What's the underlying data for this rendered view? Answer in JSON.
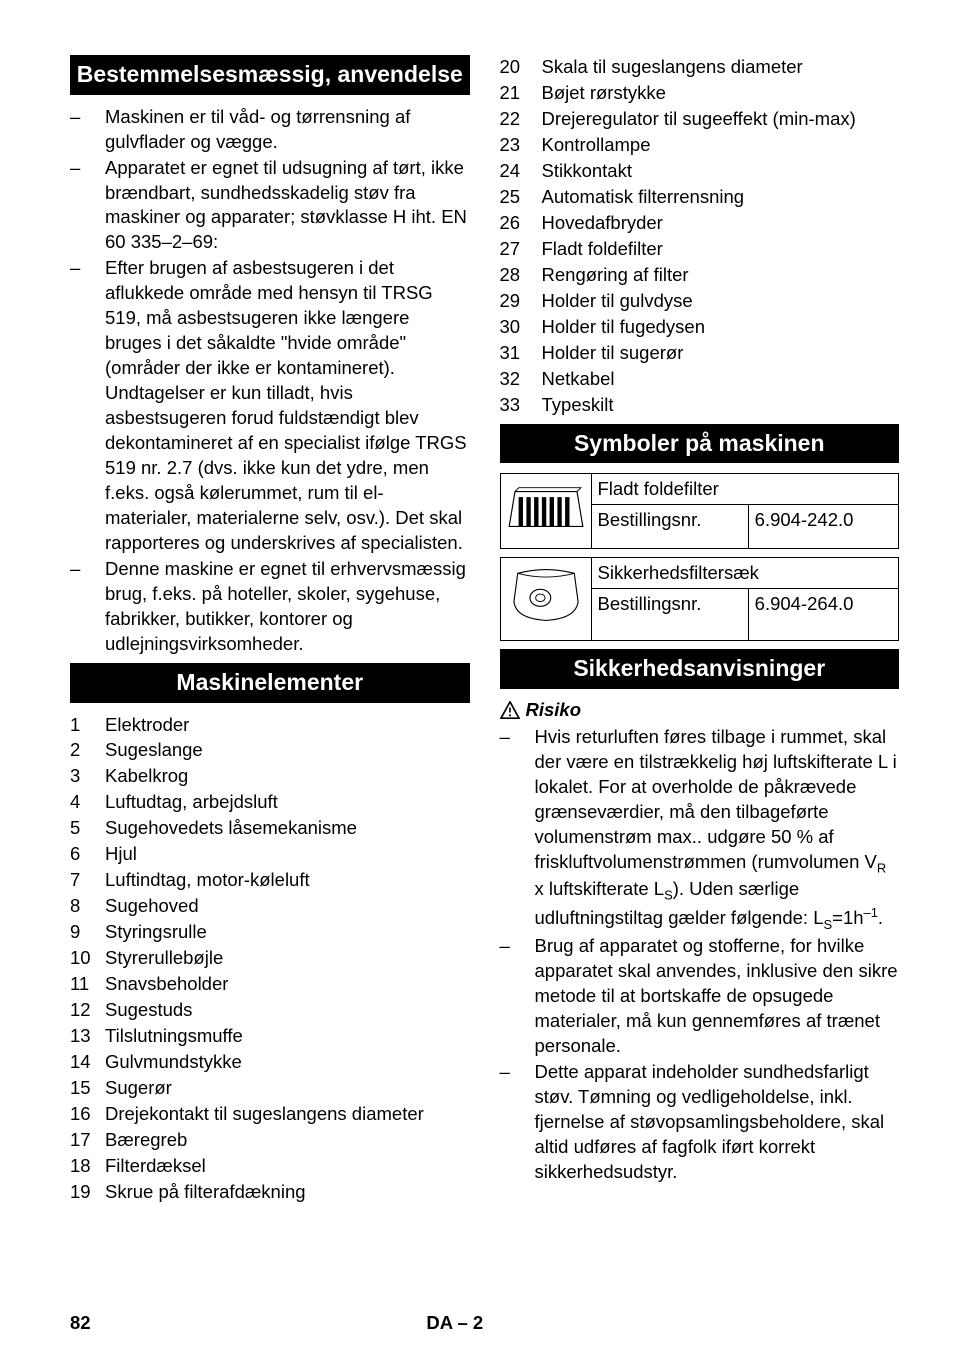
{
  "left": {
    "header1": "Bestemmelsesmæssig, anvendelse",
    "bullets1": [
      "Maskinen er til våd- og tørrensning af gulvflader og vægge.",
      "Apparatet er egnet til udsugning af tørt, ikke brændbart, sundhedsskadelig støv fra maskiner og apparater; støvklasse H iht. EN 60 335–2–69:",
      "Efter brugen af asbestsugeren i det aflukkede område med hensyn til TRSG 519, må asbestsugeren ikke længere bruges i det såkaldte \"hvide område\" (områder der ikke er kontamineret). Undtagelser er kun tilladt, hvis asbestsugeren forud fuldstændigt blev dekontamineret af en specialist ifølge TRGS 519 nr. 2.7 (dvs. ikke kun det ydre, men f.eks. også kølerummet, rum til el-materialer, materialerne selv, osv.). Det skal rapporteres og underskrives af specialisten.",
      "Denne maskine er egnet til erhvervsmæssig brug, f.eks. på hoteller, skoler, sygehuse, fabrikker, butikker, kontorer og udlejningsvirksomheder."
    ],
    "header2": "Maskinelementer",
    "numbered": [
      "Elektroder",
      "Sugeslange",
      "Kabelkrog",
      "Luftudtag, arbejdsluft",
      "Sugehovedets låsemekanisme",
      "Hjul",
      "Luftindtag, motor-køleluft",
      "Sugehoved",
      "Styringsrulle",
      "Styrerullebøjle",
      "Snavsbeholder",
      "Sugestuds",
      "Tilslutningsmuffe",
      "Gulvmundstykke",
      "Sugerør",
      "Drejekontakt til sugeslangens diameter",
      "Bæregreb",
      "Filterdæksel",
      "Skrue på filterafdækning"
    ]
  },
  "right": {
    "numbered_start": 20,
    "numbered": [
      "Skala til sugeslangens diameter",
      "Bøjet rørstykke",
      "Drejeregulator til sugeeffekt (min-max)",
      "Kontrollampe",
      "Stikkontakt",
      "Automatisk filterrensning",
      "Hovedafbryder",
      "Fladt foldefilter",
      "Rengøring af filter",
      "Holder til gulvdyse",
      "Holder til fugedysen",
      "Holder til sugerør",
      "Netkabel",
      "Typeskilt"
    ],
    "header1": "Symboler på maskinen",
    "t1r1": "Fladt foldefilter",
    "t1r2a": "Bestillingsnr.",
    "t1r2b": "6.904-242.0",
    "t2r1": "Sikkerhedsfiltersæk",
    "t2r2a": "Bestillingsnr.",
    "t2r2b": "6.904-264.0",
    "header2": "Sikkerhedsanvisninger",
    "risk": "Risiko",
    "bullets2_a_pre": "Hvis returluften føres tilbage i rummet, skal der være en tilstrækkelig høj luftskifterate L i lokalet. For at overholde de påkrævede grænseværdier, må den tilbageførte volumenstrøm max.. udgøre 50 % af friskluftvolumenstrømmen (rumvolumen V",
    "bullets2_a_mid": " x luftskifterate L",
    "bullets2_a_post1": "). Uden særlige udluftningstiltag gælder følgende: L",
    "bullets2_a_post2": "=1h",
    "bullets2_a_post3": ".",
    "bullets2_b": "Brug af apparatet og stofferne, for hvilke apparatet skal anvendes, inklusive den sikre metode til at bortskaffe de opsugede materialer, må kun gennemføres af trænet personale.",
    "bullets2_c": "Dette apparat indeholder sundhedsfarligt støv. Tømning og vedligeholdelse, inkl. fjernelse af støvopsamlingsbeholdere, skal altid udføres af fagfolk iført korrekt sikkerhedsudstyr."
  },
  "footer": {
    "page": "82",
    "lang": "DA – 2"
  }
}
